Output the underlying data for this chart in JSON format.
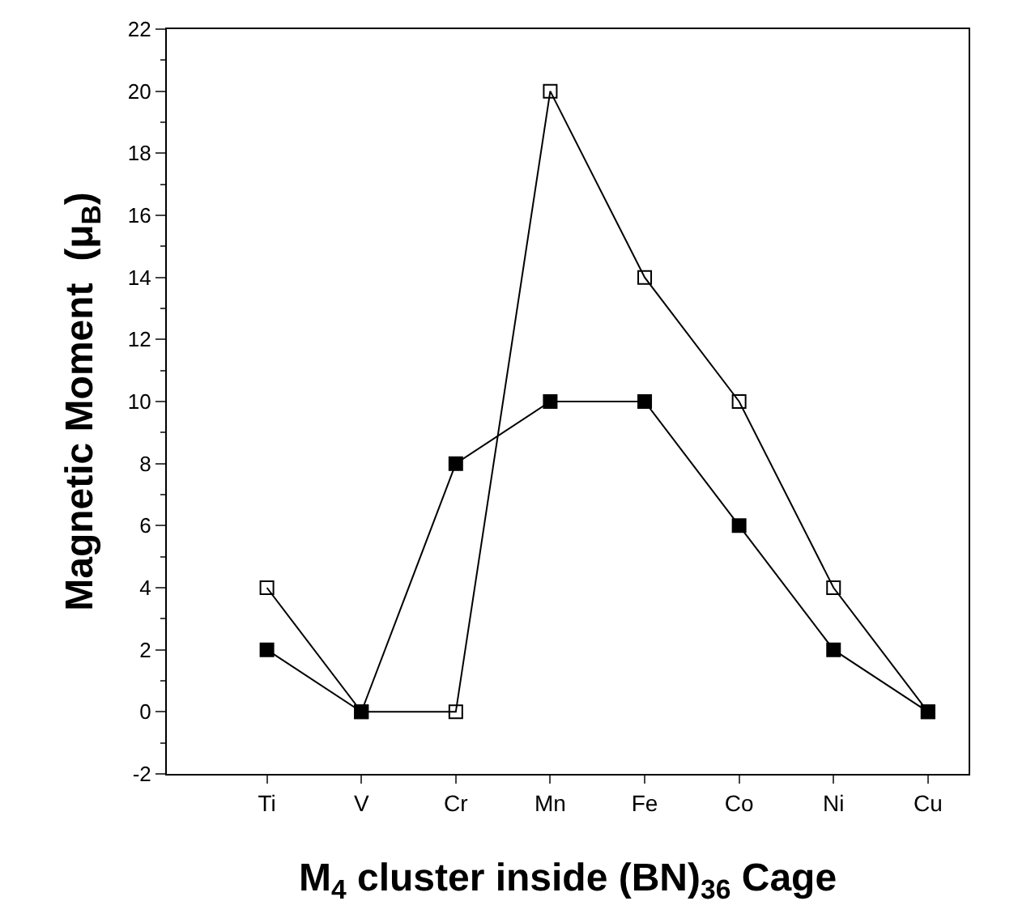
{
  "chart_data": {
    "type": "line",
    "xlabel": "M$_{4}$ cluster inside (BN)$_{36}$ Cage",
    "ylabel": "Magnetic Moment  (μ$_{B}$)",
    "categories": [
      "Ti",
      "V",
      "Cr",
      "Mn",
      "Fe",
      "Co",
      "Ni",
      "Cu"
    ],
    "series": [
      {
        "color": "#000000",
        "marker": "square-open",
        "values": [
          4,
          0,
          0,
          20,
          14,
          10,
          4,
          0
        ]
      },
      {
        "color": "#000000",
        "marker": "square",
        "values": [
          2,
          0,
          8,
          10,
          10,
          6,
          2,
          0
        ]
      }
    ],
    "ylim": [
      -2,
      22
    ],
    "yticks": [
      -2,
      0,
      2,
      4,
      6,
      8,
      10,
      12,
      14,
      16,
      18,
      20,
      22
    ],
    "line_style": "solid"
  }
}
